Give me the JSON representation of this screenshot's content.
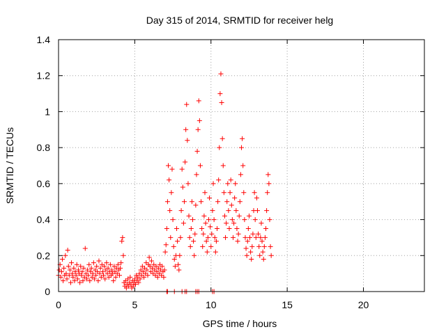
{
  "chart_data": {
    "type": "scatter",
    "title": "Day 315 of 2014, SRMTID for receiver helg",
    "xlabel": "GPS time / hours",
    "ylabel": "SRMTID / TECUs",
    "xlim": [
      0,
      24
    ],
    "ylim": [
      0,
      1.4
    ],
    "xticks": [
      0,
      5,
      10,
      15,
      20
    ],
    "xtick_labels": [
      "0",
      "5",
      "10",
      "15",
      "20"
    ],
    "yticks": [
      0,
      0.2,
      0.4,
      0.6,
      0.8,
      1.0,
      1.2,
      1.4
    ],
    "ytick_labels": [
      "0",
      "0.2",
      "0.4",
      "0.6",
      "0.8",
      "1",
      "1.2",
      "1.4"
    ],
    "grid": true,
    "marker": "plus",
    "color": "#ff0000",
    "series": [
      {
        "name": "SRMTID",
        "points": [
          [
            0.0,
            0.09
          ],
          [
            0.05,
            0.12
          ],
          [
            0.1,
            0.15
          ],
          [
            0.15,
            0.08
          ],
          [
            0.2,
            0.11
          ],
          [
            0.25,
            0.18
          ],
          [
            0.3,
            0.06
          ],
          [
            0.35,
            0.13
          ],
          [
            0.4,
            0.09
          ],
          [
            0.45,
            0.2
          ],
          [
            0.5,
            0.1
          ],
          [
            0.55,
            0.07
          ],
          [
            0.6,
            0.23
          ],
          [
            0.65,
            0.14
          ],
          [
            0.7,
            0.09
          ],
          [
            0.75,
            0.12
          ],
          [
            0.8,
            0.05
          ],
          [
            0.85,
            0.16
          ],
          [
            0.9,
            0.1
          ],
          [
            0.95,
            0.08
          ],
          [
            1.0,
            0.13
          ],
          [
            1.05,
            0.06
          ],
          [
            1.1,
            0.11
          ],
          [
            1.15,
            0.09
          ],
          [
            1.2,
            0.15
          ],
          [
            1.25,
            0.07
          ],
          [
            1.3,
            0.12
          ],
          [
            1.35,
            0.1
          ],
          [
            1.4,
            0.05
          ],
          [
            1.45,
            0.14
          ],
          [
            1.5,
            0.09
          ],
          [
            1.55,
            0.11
          ],
          [
            1.6,
            0.06
          ],
          [
            1.65,
            0.13
          ],
          [
            1.7,
            0.08
          ],
          [
            1.75,
            0.24
          ],
          [
            1.8,
            0.1
          ],
          [
            1.85,
            0.07
          ],
          [
            1.9,
            0.12
          ],
          [
            1.95,
            0.09
          ],
          [
            2.0,
            0.15
          ],
          [
            2.05,
            0.06
          ],
          [
            2.1,
            0.11
          ],
          [
            2.15,
            0.13
          ],
          [
            2.2,
            0.08
          ],
          [
            2.25,
            0.1
          ],
          [
            2.3,
            0.16
          ],
          [
            2.35,
            0.07
          ],
          [
            2.4,
            0.12
          ],
          [
            2.45,
            0.09
          ],
          [
            2.5,
            0.14
          ],
          [
            2.55,
            0.11
          ],
          [
            2.6,
            0.06
          ],
          [
            2.65,
            0.17
          ],
          [
            2.7,
            0.1
          ],
          [
            2.75,
            0.13
          ],
          [
            2.8,
            0.08
          ],
          [
            2.85,
            0.15
          ],
          [
            2.9,
            0.11
          ],
          [
            2.95,
            0.09
          ],
          [
            3.0,
            0.14
          ],
          [
            3.05,
            0.07
          ],
          [
            3.1,
            0.12
          ],
          [
            3.15,
            0.16
          ],
          [
            3.2,
            0.1
          ],
          [
            3.25,
            0.13
          ],
          [
            3.3,
            0.08
          ],
          [
            3.35,
            0.11
          ],
          [
            3.4,
            0.15
          ],
          [
            3.45,
            0.09
          ],
          [
            3.5,
            0.12
          ],
          [
            3.55,
            0.1
          ],
          [
            3.6,
            0.06
          ],
          [
            3.65,
            0.14
          ],
          [
            3.7,
            0.11
          ],
          [
            3.75,
            0.08
          ],
          [
            3.8,
            0.13
          ],
          [
            3.85,
            0.1
          ],
          [
            3.9,
            0.15
          ],
          [
            3.95,
            0.12
          ],
          [
            4.0,
            0.09
          ],
          [
            4.05,
            0.13
          ],
          [
            4.1,
            0.16
          ],
          [
            4.15,
            0.28
          ],
          [
            4.2,
            0.3
          ],
          [
            4.25,
            0.2
          ],
          [
            4.3,
            0.05
          ],
          [
            4.35,
            0.03
          ],
          [
            4.4,
            0.06
          ],
          [
            4.45,
            0.02
          ],
          [
            4.5,
            0.04
          ],
          [
            4.55,
            0.07
          ],
          [
            4.6,
            0.03
          ],
          [
            4.65,
            0.05
          ],
          [
            4.7,
            0.08
          ],
          [
            4.75,
            0.04
          ],
          [
            4.8,
            0.02
          ],
          [
            4.85,
            0.06
          ],
          [
            4.9,
            0.03
          ],
          [
            4.95,
            0.05
          ],
          [
            5.0,
            0.07
          ],
          [
            5.05,
            0.04
          ],
          [
            5.1,
            0.09
          ],
          [
            5.15,
            0.06
          ],
          [
            5.2,
            0.08
          ],
          [
            5.25,
            0.05
          ],
          [
            5.3,
            0.1
          ],
          [
            5.35,
            0.07
          ],
          [
            5.4,
            0.12
          ],
          [
            5.45,
            0.09
          ],
          [
            5.5,
            0.14
          ],
          [
            5.55,
            0.11
          ],
          [
            5.6,
            0.08
          ],
          [
            5.65,
            0.13
          ],
          [
            5.7,
            0.1
          ],
          [
            5.75,
            0.16
          ],
          [
            5.8,
            0.12
          ],
          [
            5.85,
            0.09
          ],
          [
            5.9,
            0.15
          ],
          [
            5.95,
            0.19
          ],
          [
            6.0,
            0.14
          ],
          [
            6.05,
            0.11
          ],
          [
            6.1,
            0.17
          ],
          [
            6.15,
            0.13
          ],
          [
            6.2,
            0.1
          ],
          [
            6.25,
            0.15
          ],
          [
            6.3,
            0.12
          ],
          [
            6.35,
            0.09
          ],
          [
            6.4,
            0.14
          ],
          [
            6.45,
            0.11
          ],
          [
            6.5,
            0.08
          ],
          [
            6.55,
            0.13
          ],
          [
            6.6,
            0.1
          ],
          [
            6.65,
            0.15
          ],
          [
            6.7,
            0.12
          ],
          [
            6.75,
            0.09
          ],
          [
            6.8,
            0.14
          ],
          [
            6.85,
            0.11
          ],
          [
            6.9,
            0.08
          ],
          [
            6.95,
            0.12
          ],
          [
            7.0,
            0.22
          ],
          [
            7.05,
            0.26
          ],
          [
            7.1,
            0.35
          ],
          [
            7.15,
            0.5
          ],
          [
            7.2,
            0.7
          ],
          [
            7.25,
            0.62
          ],
          [
            7.3,
            0.45
          ],
          [
            7.35,
            0.3
          ],
          [
            7.4,
            0.55
          ],
          [
            7.45,
            0.68
          ],
          [
            7.5,
            0.4
          ],
          [
            7.55,
            0.25
          ],
          [
            7.6,
            0.18
          ],
          [
            7.65,
            0.14
          ],
          [
            7.7,
            0.2
          ],
          [
            7.75,
            0.35
          ],
          [
            7.8,
            0.28
          ],
          [
            7.85,
            0.15
          ],
          [
            7.9,
            0.12
          ],
          [
            7.95,
            0.2
          ],
          [
            8.0,
            0.3
          ],
          [
            8.05,
            0.45
          ],
          [
            8.1,
            0.68
          ],
          [
            8.15,
            0.58
          ],
          [
            8.2,
            0.38
          ],
          [
            8.25,
            0.5
          ],
          [
            8.3,
            0.72
          ],
          [
            8.35,
            0.9
          ],
          [
            8.4,
            1.04
          ],
          [
            8.45,
            0.84
          ],
          [
            8.5,
            0.6
          ],
          [
            8.55,
            0.42
          ],
          [
            8.6,
            0.3
          ],
          [
            8.65,
            0.25
          ],
          [
            8.7,
            0.35
          ],
          [
            8.75,
            0.5
          ],
          [
            8.8,
            0.4
          ],
          [
            8.85,
            0.28
          ],
          [
            8.9,
            0.2
          ],
          [
            8.95,
            0.32
          ],
          [
            9.0,
            0.48
          ],
          [
            9.05,
            0.65
          ],
          [
            9.1,
            0.78
          ],
          [
            9.15,
            0.9
          ],
          [
            9.2,
            1.06
          ],
          [
            9.25,
            0.95
          ],
          [
            9.3,
            0.7
          ],
          [
            9.35,
            0.5
          ],
          [
            9.4,
            0.35
          ],
          [
            9.45,
            0.25
          ],
          [
            9.5,
            0.32
          ],
          [
            9.55,
            0.42
          ],
          [
            9.6,
            0.55
          ],
          [
            9.65,
            0.38
          ],
          [
            9.7,
            0.28
          ],
          [
            9.75,
            0.22
          ],
          [
            9.8,
            0.3
          ],
          [
            9.85,
            0.4
          ],
          [
            9.9,
            0.52
          ],
          [
            9.95,
            0.36
          ],
          [
            10.0,
            0.25
          ],
          [
            10.05,
            0.32
          ],
          [
            10.1,
            0.45
          ],
          [
            10.15,
            0.6
          ],
          [
            10.2,
            0.4
          ],
          [
            10.25,
            0.3
          ],
          [
            10.3,
            0.22
          ],
          [
            10.35,
            0.28
          ],
          [
            10.4,
            0.35
          ],
          [
            10.45,
            0.5
          ],
          [
            10.5,
            0.62
          ],
          [
            10.55,
            0.8
          ],
          [
            10.6,
            1.1
          ],
          [
            10.65,
            1.21
          ],
          [
            10.7,
            1.05
          ],
          [
            10.75,
            0.85
          ],
          [
            10.8,
            0.7
          ],
          [
            10.85,
            0.55
          ],
          [
            10.9,
            0.42
          ],
          [
            10.95,
            0.3
          ],
          [
            11.0,
            0.38
          ],
          [
            11.05,
            0.5
          ],
          [
            11.1,
            0.6
          ],
          [
            11.15,
            0.45
          ],
          [
            11.2,
            0.35
          ],
          [
            11.25,
            0.55
          ],
          [
            11.3,
            0.62
          ],
          [
            11.35,
            0.48
          ],
          [
            11.4,
            0.4
          ],
          [
            11.45,
            0.3
          ],
          [
            11.5,
            0.38
          ],
          [
            11.55,
            0.52
          ],
          [
            11.6,
            0.6
          ],
          [
            11.65,
            0.45
          ],
          [
            11.7,
            0.35
          ],
          [
            11.75,
            0.28
          ],
          [
            11.8,
            0.32
          ],
          [
            11.85,
            0.42
          ],
          [
            11.9,
            0.5
          ],
          [
            11.95,
            0.65
          ],
          [
            12.0,
            0.8
          ],
          [
            12.05,
            0.85
          ],
          [
            12.1,
            0.7
          ],
          [
            12.15,
            0.55
          ],
          [
            12.2,
            0.4
          ],
          [
            12.25,
            0.3
          ],
          [
            12.3,
            0.24
          ],
          [
            12.35,
            0.2
          ],
          [
            12.4,
            0.28
          ],
          [
            12.45,
            0.35
          ],
          [
            12.5,
            0.42
          ],
          [
            12.55,
            0.3
          ],
          [
            12.6,
            0.22
          ],
          [
            12.65,
            0.18
          ],
          [
            12.7,
            0.25
          ],
          [
            12.75,
            0.32
          ],
          [
            12.8,
            0.45
          ],
          [
            12.85,
            0.55
          ],
          [
            12.9,
            0.4
          ],
          [
            12.95,
            0.3
          ],
          [
            13.0,
            0.52
          ],
          [
            13.05,
            0.45
          ],
          [
            13.1,
            0.32
          ],
          [
            13.15,
            0.25
          ],
          [
            13.2,
            0.2
          ],
          [
            13.25,
            0.3
          ],
          [
            13.3,
            0.38
          ],
          [
            13.35,
            0.28
          ],
          [
            13.4,
            0.22
          ],
          [
            13.45,
            0.18
          ],
          [
            13.5,
            0.25
          ],
          [
            13.55,
            0.3
          ],
          [
            13.6,
            0.35
          ],
          [
            13.65,
            0.45
          ],
          [
            13.7,
            0.55
          ],
          [
            13.75,
            0.65
          ],
          [
            13.8,
            0.6
          ],
          [
            13.85,
            0.4
          ],
          [
            13.9,
            0.25
          ],
          [
            13.95,
            0.2
          ],
          [
            7.1,
            0.0
          ],
          [
            7.15,
            0.0
          ],
          [
            7.6,
            0.0
          ],
          [
            8.1,
            0.0
          ],
          [
            8.3,
            0.0
          ],
          [
            8.4,
            0.0
          ],
          [
            9.0,
            0.0
          ],
          [
            9.1,
            0.0
          ],
          [
            9.2,
            0.0
          ],
          [
            10.1,
            0.0
          ],
          [
            10.2,
            0.0
          ]
        ]
      }
    ]
  }
}
